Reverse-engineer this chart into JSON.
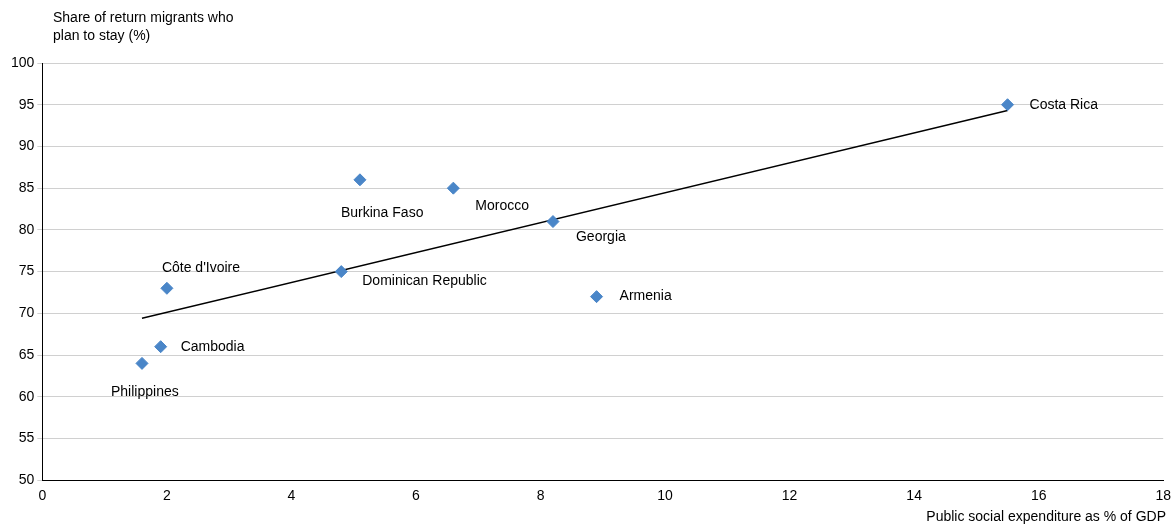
{
  "chart_data": {
    "type": "scatter",
    "xlabel": "Public social expenditure as % of GDP",
    "ylabel": "Share of return migrants who plan to stay (%)",
    "series": [
      {
        "color": "#4a86c8",
        "marker": "diamond",
        "x": [
          15.5,
          5.1,
          6.6,
          8.2,
          4.8,
          8.9,
          2.0,
          1.9,
          1.6
        ],
        "values": [
          95,
          86,
          85,
          81,
          75,
          72,
          73,
          66,
          64
        ]
      },
      {
        "type": "line",
        "marker": "none",
        "color": "#000000",
        "x": [
          1.6,
          15.5
        ],
        "values": [
          69.4,
          94.3
        ]
      }
    ],
    "annotations": [
      {
        "text": "Costa Rica",
        "x": 15.5,
        "y": 95
      },
      {
        "text": "Burkina Faso",
        "x": 5.1,
        "y": 86
      },
      {
        "text": "Morocco",
        "x": 6.6,
        "y": 85
      },
      {
        "text": "Georgia",
        "x": 8.2,
        "y": 81
      },
      {
        "text": "Dominican Republic",
        "x": 4.8,
        "y": 75
      },
      {
        "text": "Armenia",
        "x": 8.9,
        "y": 72
      },
      {
        "text": "Côte d'Ivoire",
        "x": 2.0,
        "y": 73
      },
      {
        "text": "Cambodia",
        "x": 1.9,
        "y": 66
      },
      {
        "text": "Philippines",
        "x": 1.6,
        "y": 64
      }
    ],
    "xlim": [
      0,
      18
    ],
    "xticks": [
      0,
      2,
      4,
      6,
      8,
      10,
      12,
      14,
      16,
      18
    ],
    "ylim": [
      50,
      100
    ],
    "yticks": [
      50,
      55,
      60,
      65,
      70,
      75,
      80,
      85,
      90,
      95,
      100
    ],
    "grid": "y",
    "legend": false
  }
}
